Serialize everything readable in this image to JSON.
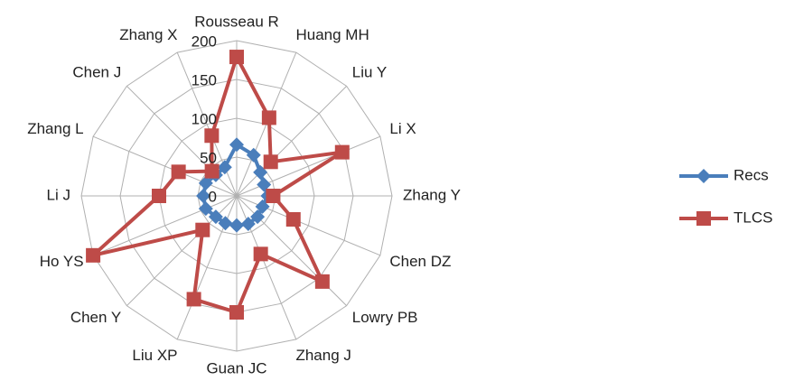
{
  "chart_data": {
    "type": "radar",
    "categories": [
      "Rousseau R",
      "Huang MH",
      "Liu Y",
      "Li X",
      "Zhang Y",
      "Chen DZ",
      "Lowry PB",
      "Zhang J",
      "Guan JC",
      "Liu XP",
      "Chen Y",
      "Ho YS",
      "Li J",
      "Zhang L",
      "Chen J",
      "Zhang X"
    ],
    "series": [
      {
        "name": "Recs",
        "color": "#4a7ebb",
        "marker": "diamond",
        "values": [
          66,
          57,
          43,
          38,
          40,
          36,
          38,
          39,
          38,
          38,
          38,
          43,
          43,
          43,
          38,
          40
        ]
      },
      {
        "name": "TLCS",
        "color": "#be4b48",
        "marker": "square",
        "values": [
          179,
          109,
          62,
          147,
          47,
          79,
          156,
          81,
          150,
          144,
          62,
          200,
          100,
          81,
          45,
          84
        ]
      }
    ],
    "ylim": [
      0,
      200
    ],
    "yticks": [
      0,
      50,
      100,
      150,
      200
    ],
    "grid": true,
    "legend": "right"
  }
}
